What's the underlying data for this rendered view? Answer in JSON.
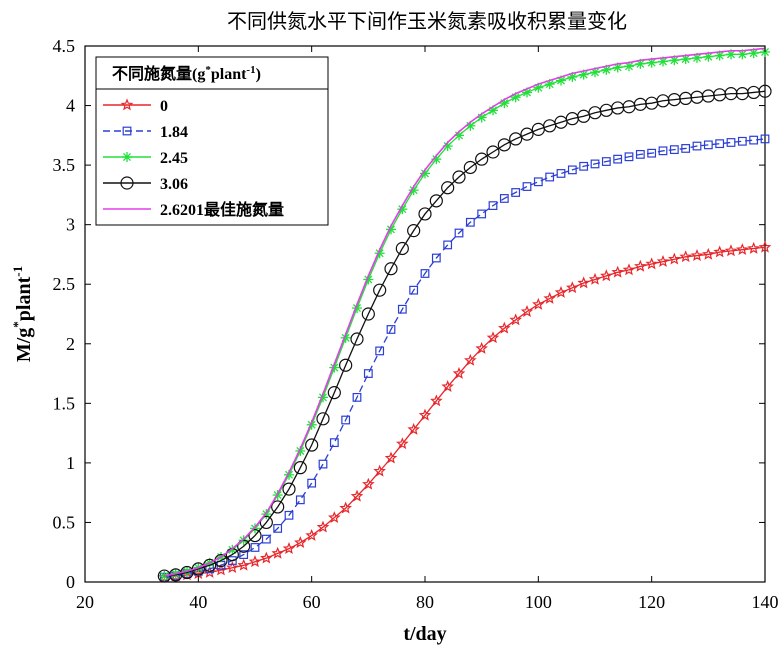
{
  "chart_data": {
    "type": "line",
    "title": "不同供氮水平下间作玉米氮素吸收积累量变化",
    "xlabel": "t/day",
    "ylabel_main": "M/g",
    "ylabel_sup1": "*",
    "ylabel_mid": "plant",
    "ylabel_sup2": "-1",
    "xlim": [
      20,
      140
    ],
    "ylim": [
      0,
      4.5
    ],
    "xticks": [
      "20",
      "40",
      "60",
      "80",
      "100",
      "120",
      "140"
    ],
    "yticks": [
      "0",
      "0.5",
      "1",
      "1.5",
      "2",
      "2.5",
      "3",
      "3.5",
      "4",
      "4.5"
    ],
    "grid": false,
    "legend": {
      "title_main": "不同施氮量(g",
      "title_sup1": "*",
      "title_mid": "plant",
      "title_sup2": "-1",
      "title_end": ")",
      "placement": "top-left"
    },
    "x_start": 34,
    "x_end": 140,
    "x_step": 2,
    "series": [
      {
        "name": "0",
        "color": "#e8262a",
        "marker": "star",
        "dash": "solid",
        "values": [
          0.04,
          0.05,
          0.06,
          0.07,
          0.08,
          0.1,
          0.12,
          0.14,
          0.17,
          0.2,
          0.24,
          0.28,
          0.33,
          0.39,
          0.46,
          0.54,
          0.62,
          0.72,
          0.82,
          0.93,
          1.04,
          1.16,
          1.28,
          1.4,
          1.52,
          1.64,
          1.75,
          1.86,
          1.96,
          2.05,
          2.13,
          2.2,
          2.27,
          2.33,
          2.38,
          2.43,
          2.47,
          2.51,
          2.54,
          2.57,
          2.6,
          2.62,
          2.65,
          2.67,
          2.69,
          2.71,
          2.73,
          2.74,
          2.75,
          2.77,
          2.78,
          2.79,
          2.8,
          2.81
        ]
      },
      {
        "name": "1.84",
        "color": "#2b3fd4",
        "marker": "square",
        "dash": "dashed",
        "values": [
          0.04,
          0.05,
          0.07,
          0.09,
          0.11,
          0.14,
          0.18,
          0.23,
          0.29,
          0.36,
          0.45,
          0.56,
          0.69,
          0.83,
          0.99,
          1.17,
          1.36,
          1.55,
          1.75,
          1.94,
          2.12,
          2.29,
          2.45,
          2.59,
          2.72,
          2.83,
          2.93,
          3.02,
          3.09,
          3.16,
          3.22,
          3.27,
          3.32,
          3.36,
          3.4,
          3.43,
          3.46,
          3.49,
          3.51,
          3.53,
          3.55,
          3.57,
          3.59,
          3.6,
          3.62,
          3.63,
          3.64,
          3.66,
          3.67,
          3.68,
          3.69,
          3.7,
          3.71,
          3.72
        ]
      },
      {
        "name": "2.45",
        "color": "#22e03a",
        "marker": "asterisk",
        "dash": "solid",
        "values": [
          0.05,
          0.07,
          0.09,
          0.12,
          0.16,
          0.21,
          0.27,
          0.35,
          0.45,
          0.57,
          0.73,
          0.9,
          1.1,
          1.32,
          1.55,
          1.8,
          2.05,
          2.3,
          2.54,
          2.76,
          2.96,
          3.13,
          3.29,
          3.43,
          3.55,
          3.66,
          3.75,
          3.83,
          3.9,
          3.96,
          4.02,
          4.07,
          4.11,
          4.15,
          4.18,
          4.21,
          4.24,
          4.26,
          4.28,
          4.3,
          4.32,
          4.33,
          4.35,
          4.36,
          4.37,
          4.38,
          4.39,
          4.4,
          4.41,
          4.42,
          4.43,
          4.43,
          4.44,
          4.45
        ]
      },
      {
        "name": "3.06",
        "color": "#111111",
        "marker": "circle",
        "dash": "solid",
        "values": [
          0.05,
          0.06,
          0.08,
          0.11,
          0.14,
          0.18,
          0.23,
          0.3,
          0.39,
          0.5,
          0.63,
          0.78,
          0.96,
          1.15,
          1.37,
          1.59,
          1.82,
          2.04,
          2.25,
          2.45,
          2.63,
          2.8,
          2.95,
          3.09,
          3.2,
          3.31,
          3.4,
          3.48,
          3.55,
          3.61,
          3.67,
          3.72,
          3.76,
          3.8,
          3.83,
          3.86,
          3.89,
          3.91,
          3.94,
          3.96,
          3.98,
          3.99,
          4.01,
          4.02,
          4.04,
          4.05,
          4.06,
          4.07,
          4.08,
          4.09,
          4.1,
          4.1,
          4.11,
          4.12
        ]
      },
      {
        "name": "2.6201最佳施氮量",
        "color": "#e040e6",
        "marker": "none",
        "dash": "solid",
        "values": [
          0.05,
          0.07,
          0.09,
          0.12,
          0.16,
          0.21,
          0.28,
          0.36,
          0.46,
          0.58,
          0.74,
          0.92,
          1.12,
          1.34,
          1.58,
          1.83,
          2.08,
          2.33,
          2.57,
          2.79,
          2.99,
          3.16,
          3.32,
          3.46,
          3.58,
          3.69,
          3.78,
          3.86,
          3.93,
          3.99,
          4.05,
          4.1,
          4.14,
          4.18,
          4.21,
          4.24,
          4.27,
          4.29,
          4.31,
          4.33,
          4.35,
          4.36,
          4.38,
          4.39,
          4.4,
          4.41,
          4.42,
          4.43,
          4.44,
          4.45,
          4.46,
          4.46,
          4.47,
          4.48
        ]
      }
    ]
  }
}
